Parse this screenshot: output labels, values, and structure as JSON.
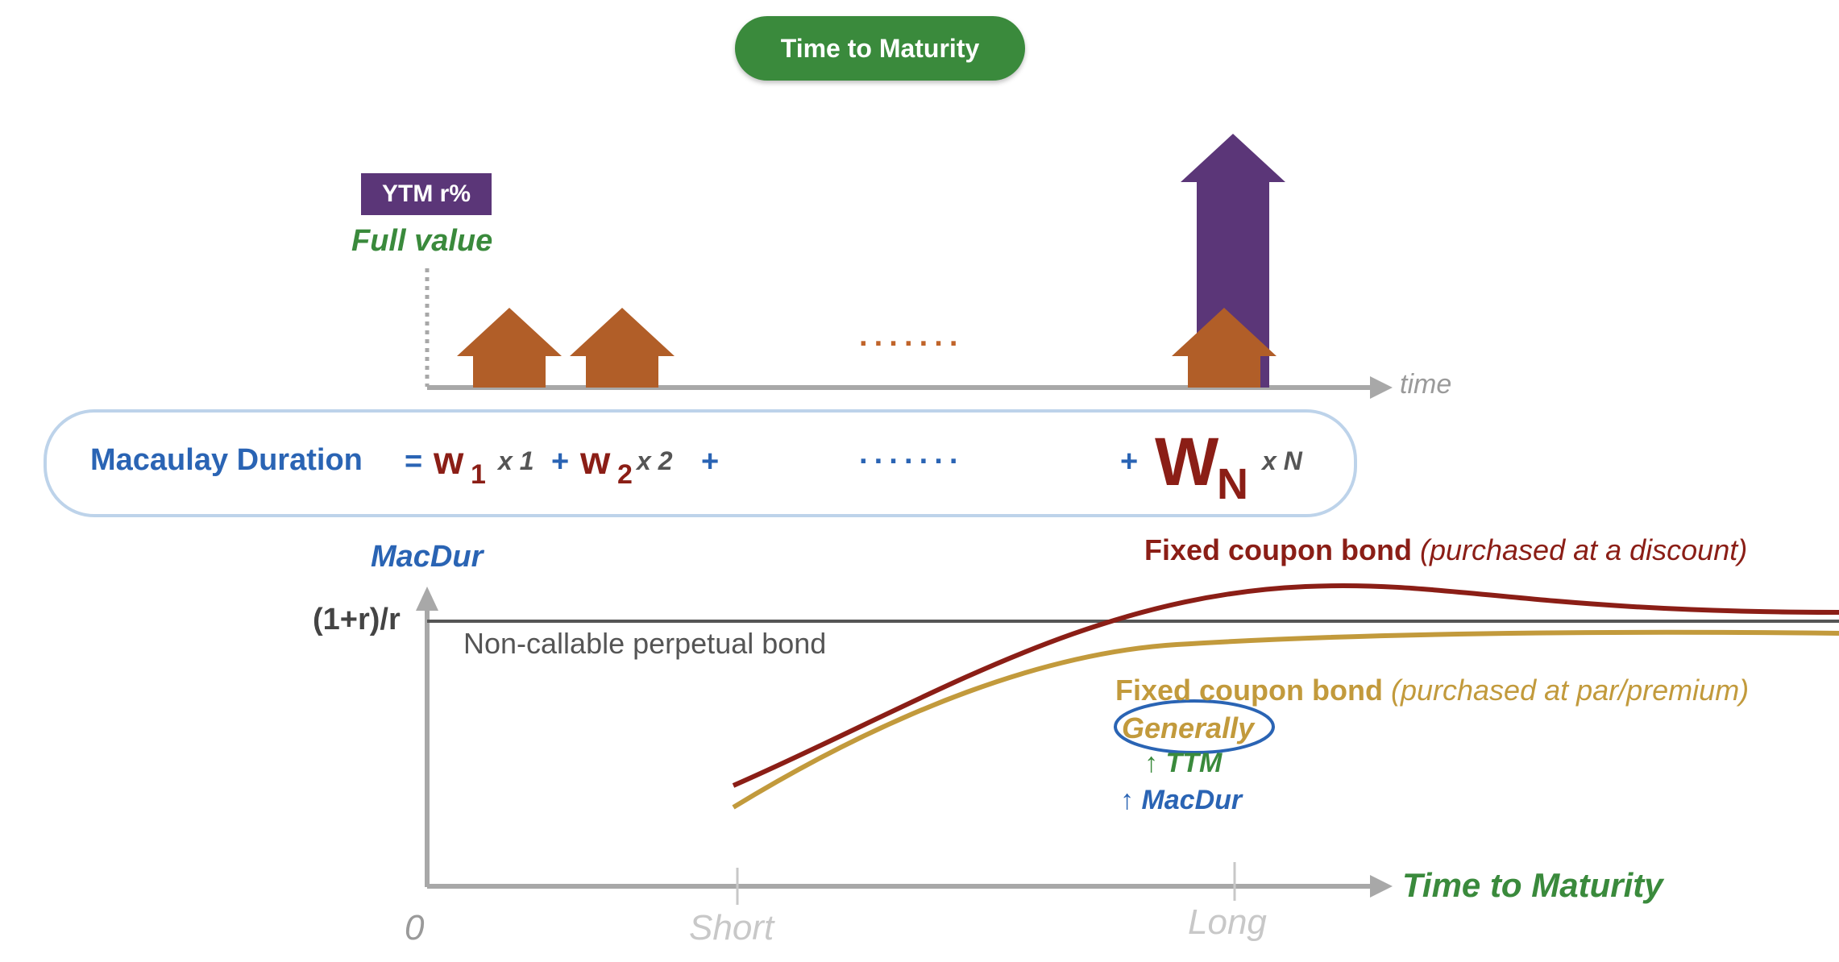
{
  "header": {
    "title": "Time to Maturity"
  },
  "timeline": {
    "badge": "YTM r%",
    "start_label": "Full value",
    "axis_label": "time",
    "ellipsis": "·······"
  },
  "formula": {
    "label": "Macaulay Duration",
    "equals": "=",
    "w": "w",
    "sub1": "1",
    "x1": "x 1",
    "plus": "+",
    "sub2": "2",
    "x2": "x 2",
    "ellipsis": "·······",
    "W": "W",
    "subN": "N",
    "xN": "x N"
  },
  "chart": {
    "y_axis_label": "MacDur",
    "asymptote_label": "(1+r)/r",
    "perpetual_label": "Non-callable perpetual bond",
    "discount_bond": {
      "name": "Fixed coupon bond",
      "note": "(purchased at a discount)",
      "color": "#8b1e16"
    },
    "par_bond": {
      "name": "Fixed coupon bond",
      "note": "(purchased at par/premium)",
      "color": "#c29a3c"
    },
    "annotation": {
      "generally": "Generally",
      "ttm": "↑ TTM",
      "macdur": "↑ MacDur"
    },
    "x_axis_label": "Time to Maturity",
    "x_ticks": [
      "0",
      "Short",
      "Long"
    ]
  },
  "colors": {
    "green": "#3a8a3c",
    "purple": "#5b3678",
    "orange": "#b15e28",
    "blue": "#2a64b4",
    "maroon": "#8b1e16",
    "gold": "#c29a3c"
  }
}
